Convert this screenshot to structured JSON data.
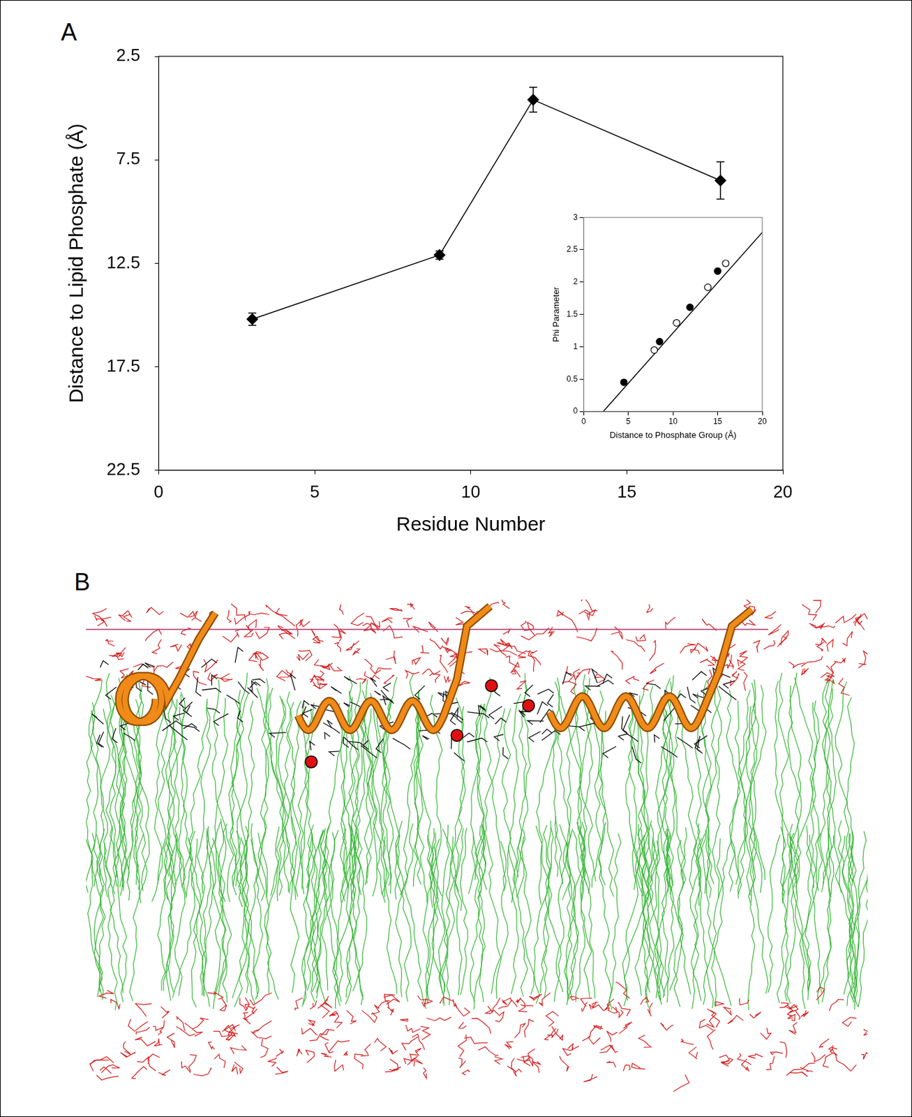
{
  "panels": [
    "A",
    "B"
  ],
  "chart_data": [
    {
      "type": "line",
      "x": [
        3,
        9,
        12,
        18
      ],
      "values": [
        15.2,
        12.1,
        4.6,
        8.5
      ],
      "errors": [
        0.3,
        0.2,
        0.6,
        0.9
      ],
      "color": "#000000",
      "marker": "diamond",
      "x_label": "Residue Number",
      "y_label": "Distance to Lipid Phosphate (Å)",
      "xlim": [
        0,
        20
      ],
      "xticks": [
        0,
        5,
        10,
        15,
        20
      ],
      "ylim": [
        22.5,
        2.5
      ],
      "yticks": [
        2.5,
        7.5,
        12.5,
        17.5,
        22.5
      ],
      "grid": false
    },
    {
      "type": "scatter",
      "x_label": "Distance to Phosphate Group (Å)",
      "y_label": "Phi Parameter",
      "xlim": [
        0,
        20
      ],
      "xticks": [
        0,
        5,
        10,
        15,
        20
      ],
      "ylim": [
        0,
        3
      ],
      "yticks": [
        0,
        0.5,
        1,
        1.5,
        2,
        2.5,
        3
      ],
      "grid": false,
      "series": [
        {
          "color": "#000000",
          "marker": "circle",
          "x": [
            4.5,
            8.5,
            11.9,
            15.0
          ],
          "values": [
            0.45,
            1.08,
            1.61,
            2.17
          ]
        },
        {
          "color": "#000000",
          "marker": "ring",
          "x": [
            7.9,
            10.4,
            13.9,
            15.9
          ],
          "values": [
            0.95,
            1.37,
            1.92,
            2.29
          ]
        },
        {
          "type": "line",
          "color": "#000000",
          "x": [
            2.2,
            20
          ],
          "values": [
            0,
            2.77
          ]
        }
      ]
    }
  ]
}
